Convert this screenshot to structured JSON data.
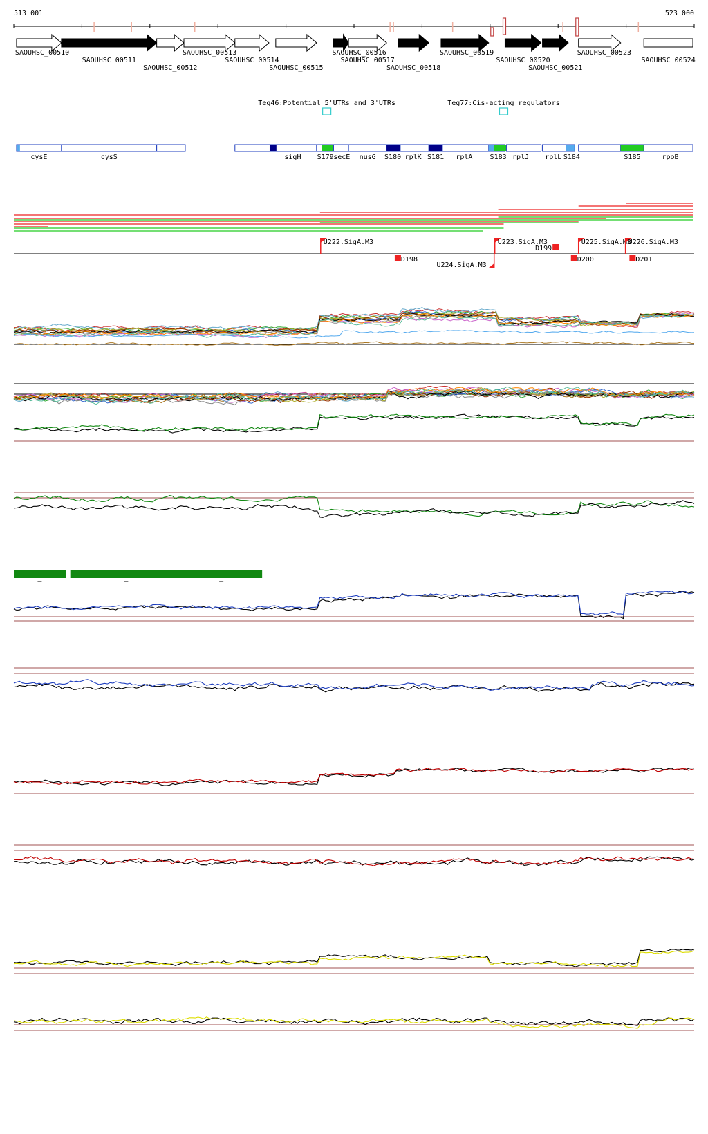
{
  "coords": {
    "start": "513 001",
    "end": "523 000"
  },
  "colors": {
    "red": "#ee2222",
    "green": "#22cc22",
    "darkgreen": "#118811",
    "blue": "#1f3fbf",
    "darkred": "#c00000",
    "yellow": "#dddd00",
    "lightblue": "#55aaee",
    "cyan": "#33cccc",
    "navy": "#000088",
    "gridbrown": "#a05050"
  },
  "genes": [
    {
      "label": "SAOUHSC_00510",
      "s": 0.004,
      "e": 0.07,
      "dir": "right",
      "filled": false,
      "ly": 0
    },
    {
      "label": "SAOUHSC_00511",
      "s": 0.07,
      "e": 0.21,
      "dir": "right",
      "filled": true,
      "ly": 1
    },
    {
      "label": "SAOUHSC_00512",
      "s": 0.21,
      "e": 0.25,
      "dir": "right",
      "filled": false,
      "ly": 2
    },
    {
      "label": "SAOUHSC_00513",
      "s": 0.25,
      "e": 0.325,
      "dir": "right",
      "filled": false,
      "ly": 0
    },
    {
      "label": "SAOUHSC_00514",
      "s": 0.325,
      "e": 0.375,
      "dir": "right",
      "filled": false,
      "ly": 1
    },
    {
      "label": "SAOUHSC_00515",
      "s": 0.385,
      "e": 0.445,
      "dir": "right",
      "filled": false,
      "ly": 2
    },
    {
      "label": "SAOUHSC_00516",
      "s": 0.47,
      "e": 0.492,
      "dir": "right",
      "filled": true,
      "ly": 0
    },
    {
      "label": "SAOUHSC_00517",
      "s": 0.492,
      "e": 0.548,
      "dir": "right",
      "filled": false,
      "ly": 1
    },
    {
      "label": "SAOUHSC_00518",
      "s": 0.565,
      "e": 0.61,
      "dir": "right",
      "filled": true,
      "ly": 2
    },
    {
      "label": "SAOUHSC_00519",
      "s": 0.628,
      "e": 0.698,
      "dir": "right",
      "filled": true,
      "ly": 0
    },
    {
      "label": "SAOUHSC_00520",
      "s": 0.722,
      "e": 0.775,
      "dir": "right",
      "filled": true,
      "ly": 1
    },
    {
      "label": "SAOUHSC_00521",
      "s": 0.777,
      "e": 0.815,
      "dir": "right",
      "filled": true,
      "ly": 2
    },
    {
      "label": "SAOUHSC_00523",
      "s": 0.83,
      "e": 0.892,
      "dir": "right",
      "filled": false,
      "ly": 0
    },
    {
      "label": "SAOUHSC_00524",
      "s": 0.926,
      "e": 0.998,
      "dir": "none",
      "filled": false,
      "ly": 1
    }
  ],
  "teg": [
    {
      "label": "Teg46:Potential 5'UTRs and 3'UTRs",
      "pos": 0.46
    },
    {
      "label": "Teg77:Cis-acting regulators",
      "pos": 0.72
    }
  ],
  "annotations": [
    {
      "label": "cysE",
      "s": 0.004,
      "e": 0.07,
      "lpos": 0.037,
      "marks": [
        {
          "s": 0.004,
          "e": 0.009,
          "c": "lightblue"
        }
      ]
    },
    {
      "label": "cysS",
      "s": 0.07,
      "e": 0.21,
      "lpos": 0.14,
      "marks": []
    },
    {
      "label": "",
      "s": 0.21,
      "e": 0.252,
      "lpos": 0,
      "marks": []
    },
    {
      "label": "sigH",
      "s": 0.325,
      "e": 0.445,
      "lpos": 0.41,
      "marks": [
        {
          "s": 0.376,
          "e": 0.386,
          "c": "navy"
        },
        {
          "s": 0.445,
          "e": 0.453,
          "c": "lightblue"
        }
      ]
    },
    {
      "label": "S179",
      "s": 0.445,
      "e": 0.47,
      "lpos": 0.458,
      "marks": [
        {
          "s": 0.453,
          "e": 0.47,
          "c": "green"
        }
      ]
    },
    {
      "label": "secE",
      "s": 0.47,
      "e": 0.492,
      "lpos": 0.482,
      "marks": []
    },
    {
      "label": "nusG",
      "s": 0.492,
      "e": 0.548,
      "lpos": 0.52,
      "marks": []
    },
    {
      "label": "S180",
      "s": 0.548,
      "e": 0.568,
      "lpos": 0.557,
      "marks": [
        {
          "s": 0.548,
          "e": 0.568,
          "c": "navy"
        }
      ]
    },
    {
      "label": "rplK",
      "s": 0.568,
      "e": 0.61,
      "lpos": 0.587,
      "marks": []
    },
    {
      "label": "S181",
      "s": 0.61,
      "e": 0.63,
      "lpos": 0.62,
      "marks": [
        {
          "s": 0.61,
          "e": 0.63,
          "c": "navy"
        }
      ]
    },
    {
      "label": "rplA",
      "s": 0.63,
      "e": 0.698,
      "lpos": 0.662,
      "marks": []
    },
    {
      "label": "S183",
      "s": 0.698,
      "e": 0.722,
      "lpos": 0.712,
      "marks": [
        {
          "s": 0.698,
          "e": 0.706,
          "c": "lightblue"
        },
        {
          "s": 0.706,
          "e": 0.724,
          "c": "green"
        }
      ]
    },
    {
      "label": "rplJ",
      "s": 0.724,
      "e": 0.775,
      "lpos": 0.745,
      "marks": []
    },
    {
      "label": "rplL",
      "s": 0.777,
      "e": 0.812,
      "lpos": 0.793,
      "marks": []
    },
    {
      "label": "S184",
      "s": 0.812,
      "e": 0.824,
      "lpos": 0.82,
      "marks": [
        {
          "s": 0.812,
          "e": 0.824,
          "c": "lightblue"
        }
      ]
    },
    {
      "label": "",
      "s": 0.83,
      "e": 0.892,
      "lpos": 0,
      "marks": []
    },
    {
      "label": "S185",
      "s": 0.892,
      "e": 0.926,
      "lpos": 0.909,
      "marks": [
        {
          "s": 0.892,
          "e": 0.926,
          "c": "green"
        }
      ]
    },
    {
      "label": "rpoB",
      "s": 0.926,
      "e": 0.998,
      "lpos": 0.965,
      "marks": []
    }
  ],
  "promoters": [
    {
      "label": "U222.SigA.M3",
      "pos": 0.451,
      "strand": "+"
    },
    {
      "label": "U223.SigA.M3",
      "pos": 0.707,
      "strand": "+"
    },
    {
      "label": "U224.SigA.M3",
      "pos": 0.706,
      "strand": "-"
    },
    {
      "label": "U225.SigA.M3",
      "pos": 0.83,
      "strand": "+"
    },
    {
      "label": "U226.SigA.M3",
      "pos": 0.899,
      "strand": "+"
    }
  ],
  "terminators": [
    {
      "label": "D198",
      "pos": 0.568,
      "strand": "-"
    },
    {
      "label": "D199",
      "pos": 0.8,
      "strand": "+"
    },
    {
      "label": "D200",
      "pos": 0.827,
      "strand": "-"
    },
    {
      "label": "D201",
      "pos": 0.913,
      "strand": "-"
    }
  ]
}
